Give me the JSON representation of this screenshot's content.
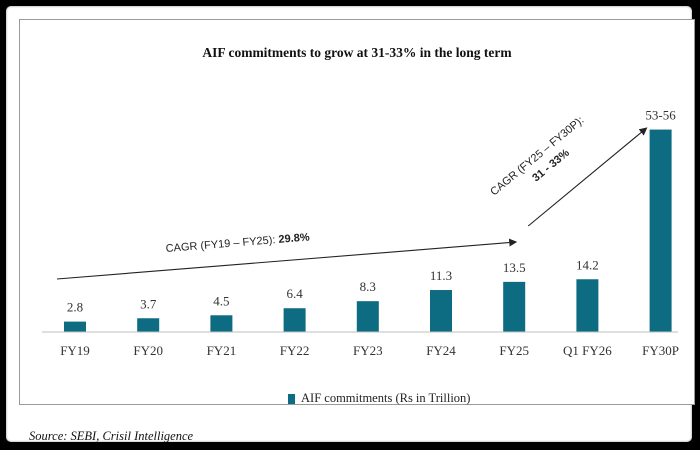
{
  "chart_data": {
    "type": "bar",
    "title": "AIF commitments to grow at 31-33% in the long term",
    "categories": [
      "FY19",
      "FY20",
      "FY21",
      "FY22",
      "FY23",
      "FY24",
      "FY25",
      "Q1 FY26",
      "FY30P"
    ],
    "values": [
      2.8,
      3.7,
      4.5,
      6.4,
      8.3,
      11.3,
      13.5,
      14.2,
      54.5
    ],
    "data_labels": [
      "2.8",
      "3.7",
      "4.5",
      "6.4",
      "8.3",
      "11.3",
      "13.5",
      "14.2",
      "53-56"
    ],
    "series": [
      {
        "name": "AIF commitments (Rs in Trillion)",
        "color": "#0d6b82"
      }
    ],
    "ylim": [
      0,
      56
    ],
    "grid": false,
    "legend": "bottom",
    "annotations": [
      {
        "prefix": "CAGR (FY19 – FY25): ",
        "bold": "29.8%"
      },
      {
        "line1": "CAGR (FY25 – FY30P):",
        "line2": "31 - 33%"
      }
    ]
  },
  "source": "Source: SEBI, Crisil Intelligence"
}
